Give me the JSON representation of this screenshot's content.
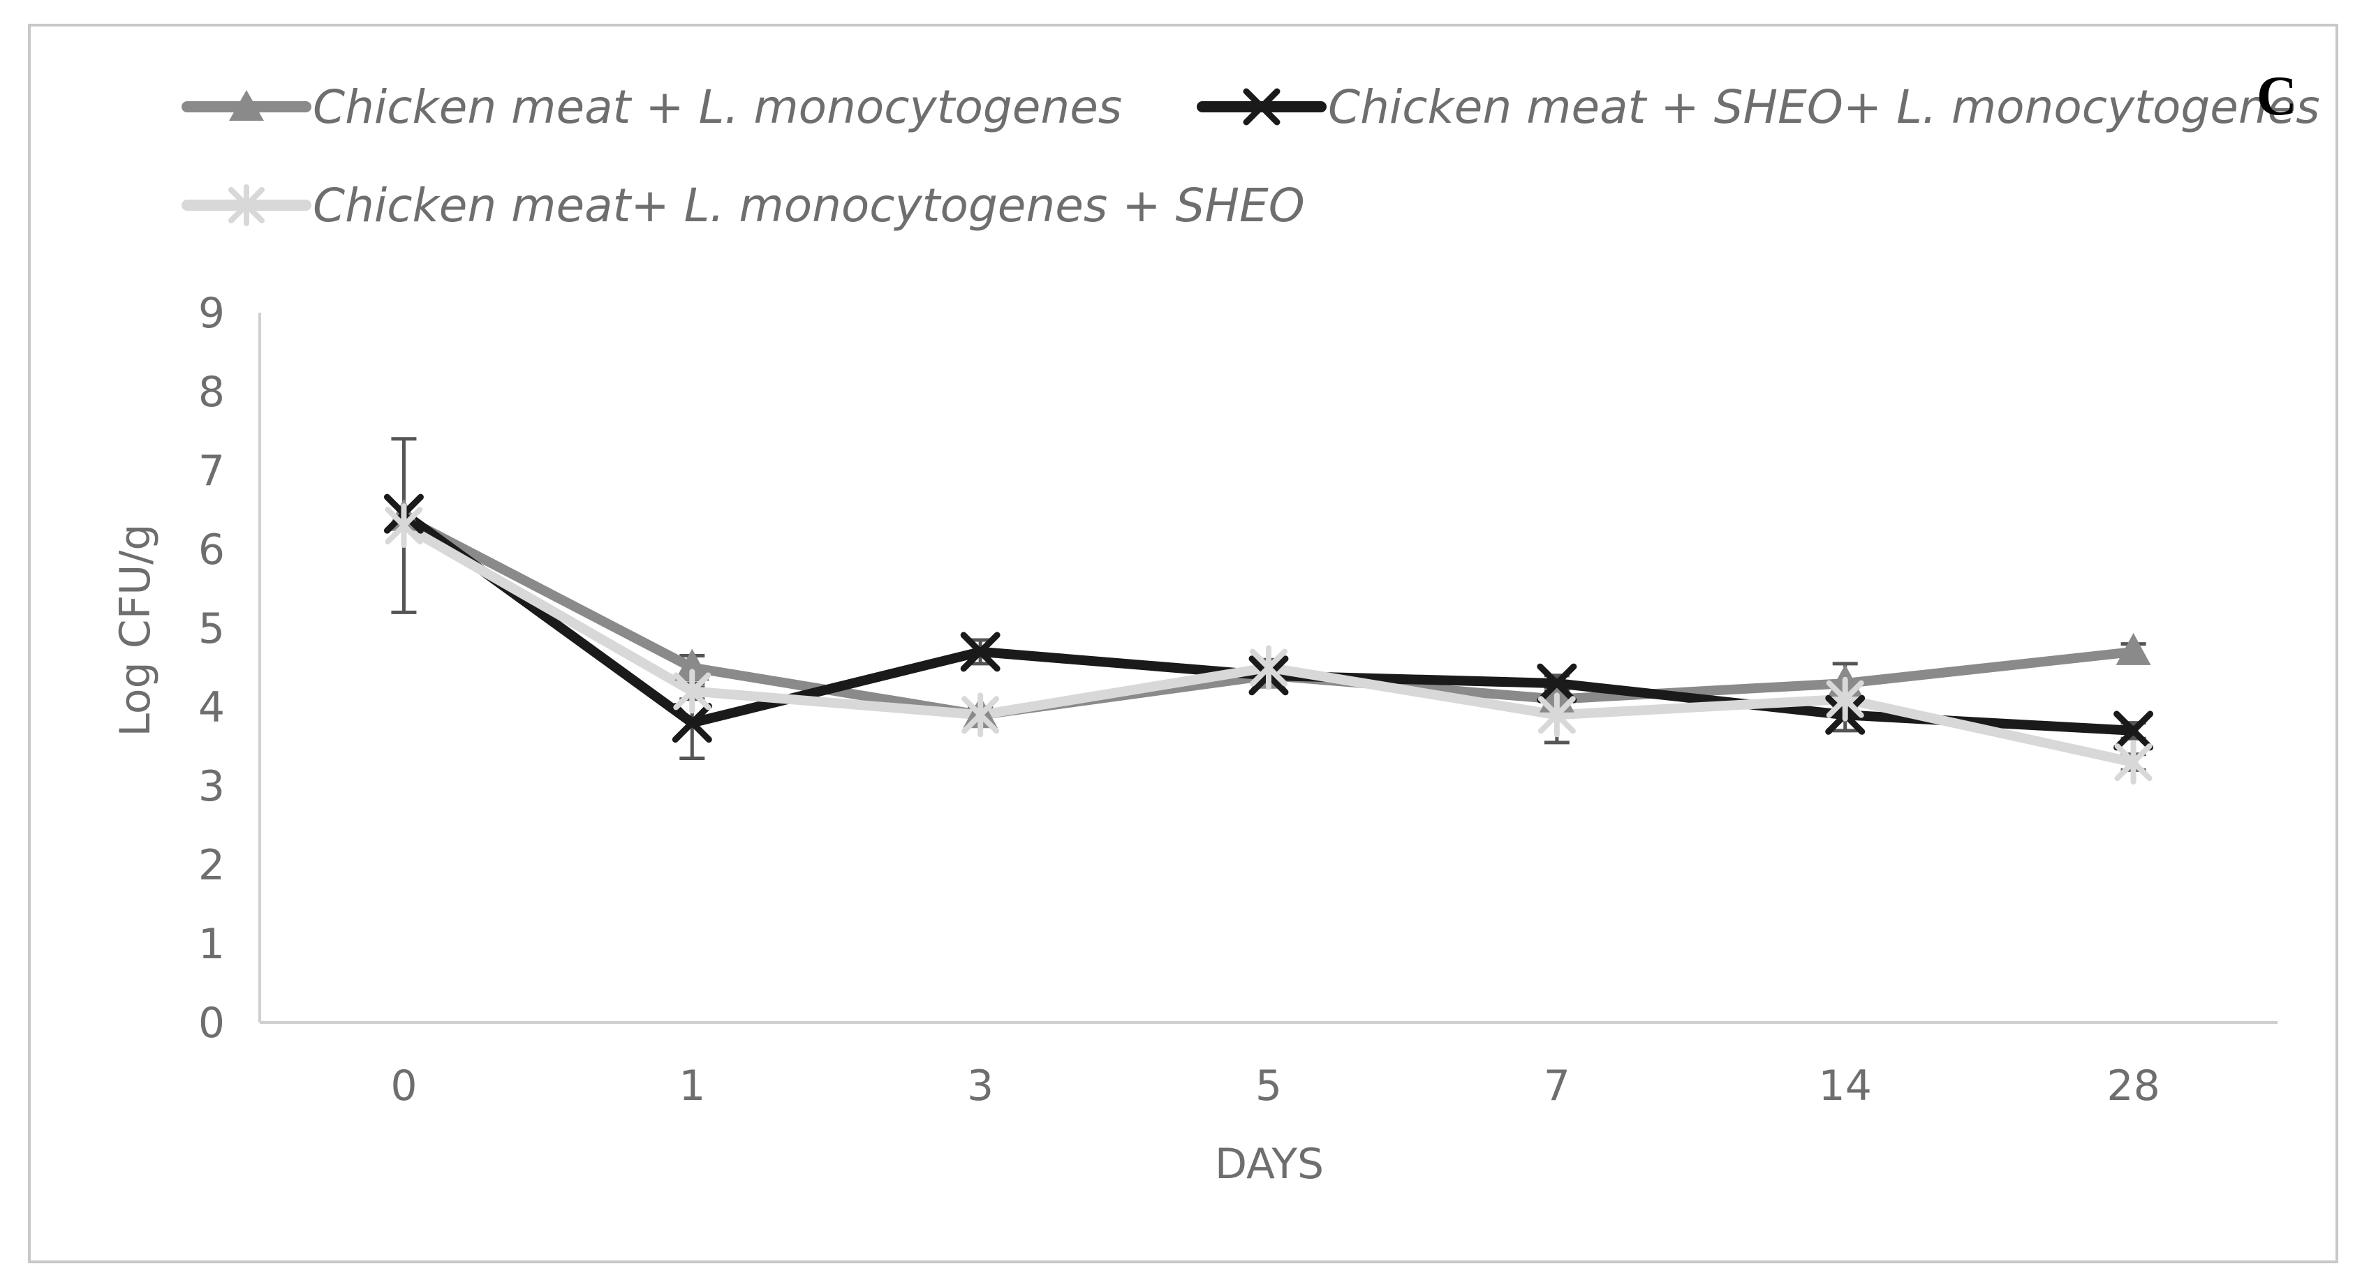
{
  "panel_label": "C",
  "colors": {
    "series_1": "#8a8a8a",
    "series_2": "#1a1a1a",
    "series_3": "#d8d8d8",
    "axis": "#d0d0d0",
    "text": "#6e6e6e",
    "frame": "#c8c8c8",
    "error_bar": "#555555"
  },
  "chart_data": {
    "type": "line",
    "title": "",
    "xlabel": "DAYS",
    "ylabel": "Log CFU/g",
    "categories": [
      "0",
      "1",
      "3",
      "5",
      "7",
      "14",
      "28"
    ],
    "y_ticks": [
      "0",
      "1",
      "2",
      "3",
      "4",
      "5",
      "6",
      "7",
      "8",
      "9"
    ],
    "ylim": [
      0,
      9
    ],
    "grid": false,
    "legend_position": "top",
    "series": [
      {
        "name": "Chicken meat + L. monocytogenes",
        "marker": "triangle",
        "values": [
          6.4,
          4.5,
          3.9,
          4.4,
          4.1,
          4.3,
          4.7
        ],
        "error": [
          0,
          0.15,
          0.1,
          0.1,
          0.1,
          0.25,
          0.1
        ]
      },
      {
        "name": "Chicken meat + SHEO+ L. monocytogenes",
        "marker": "x",
        "values": [
          6.45,
          3.8,
          4.7,
          4.4,
          4.3,
          3.9,
          3.7
        ],
        "error": [
          0,
          0.45,
          0.15,
          0.1,
          0.1,
          0.2,
          0.1
        ]
      },
      {
        "name": "Chicken meat+ L. monocytogenes + SHEO",
        "marker": "star",
        "values": [
          6.3,
          4.2,
          3.9,
          4.5,
          3.9,
          4.1,
          3.3
        ],
        "error": [
          1.1,
          0.1,
          0.1,
          0.1,
          0.35,
          0.1,
          0.1
        ]
      }
    ]
  }
}
